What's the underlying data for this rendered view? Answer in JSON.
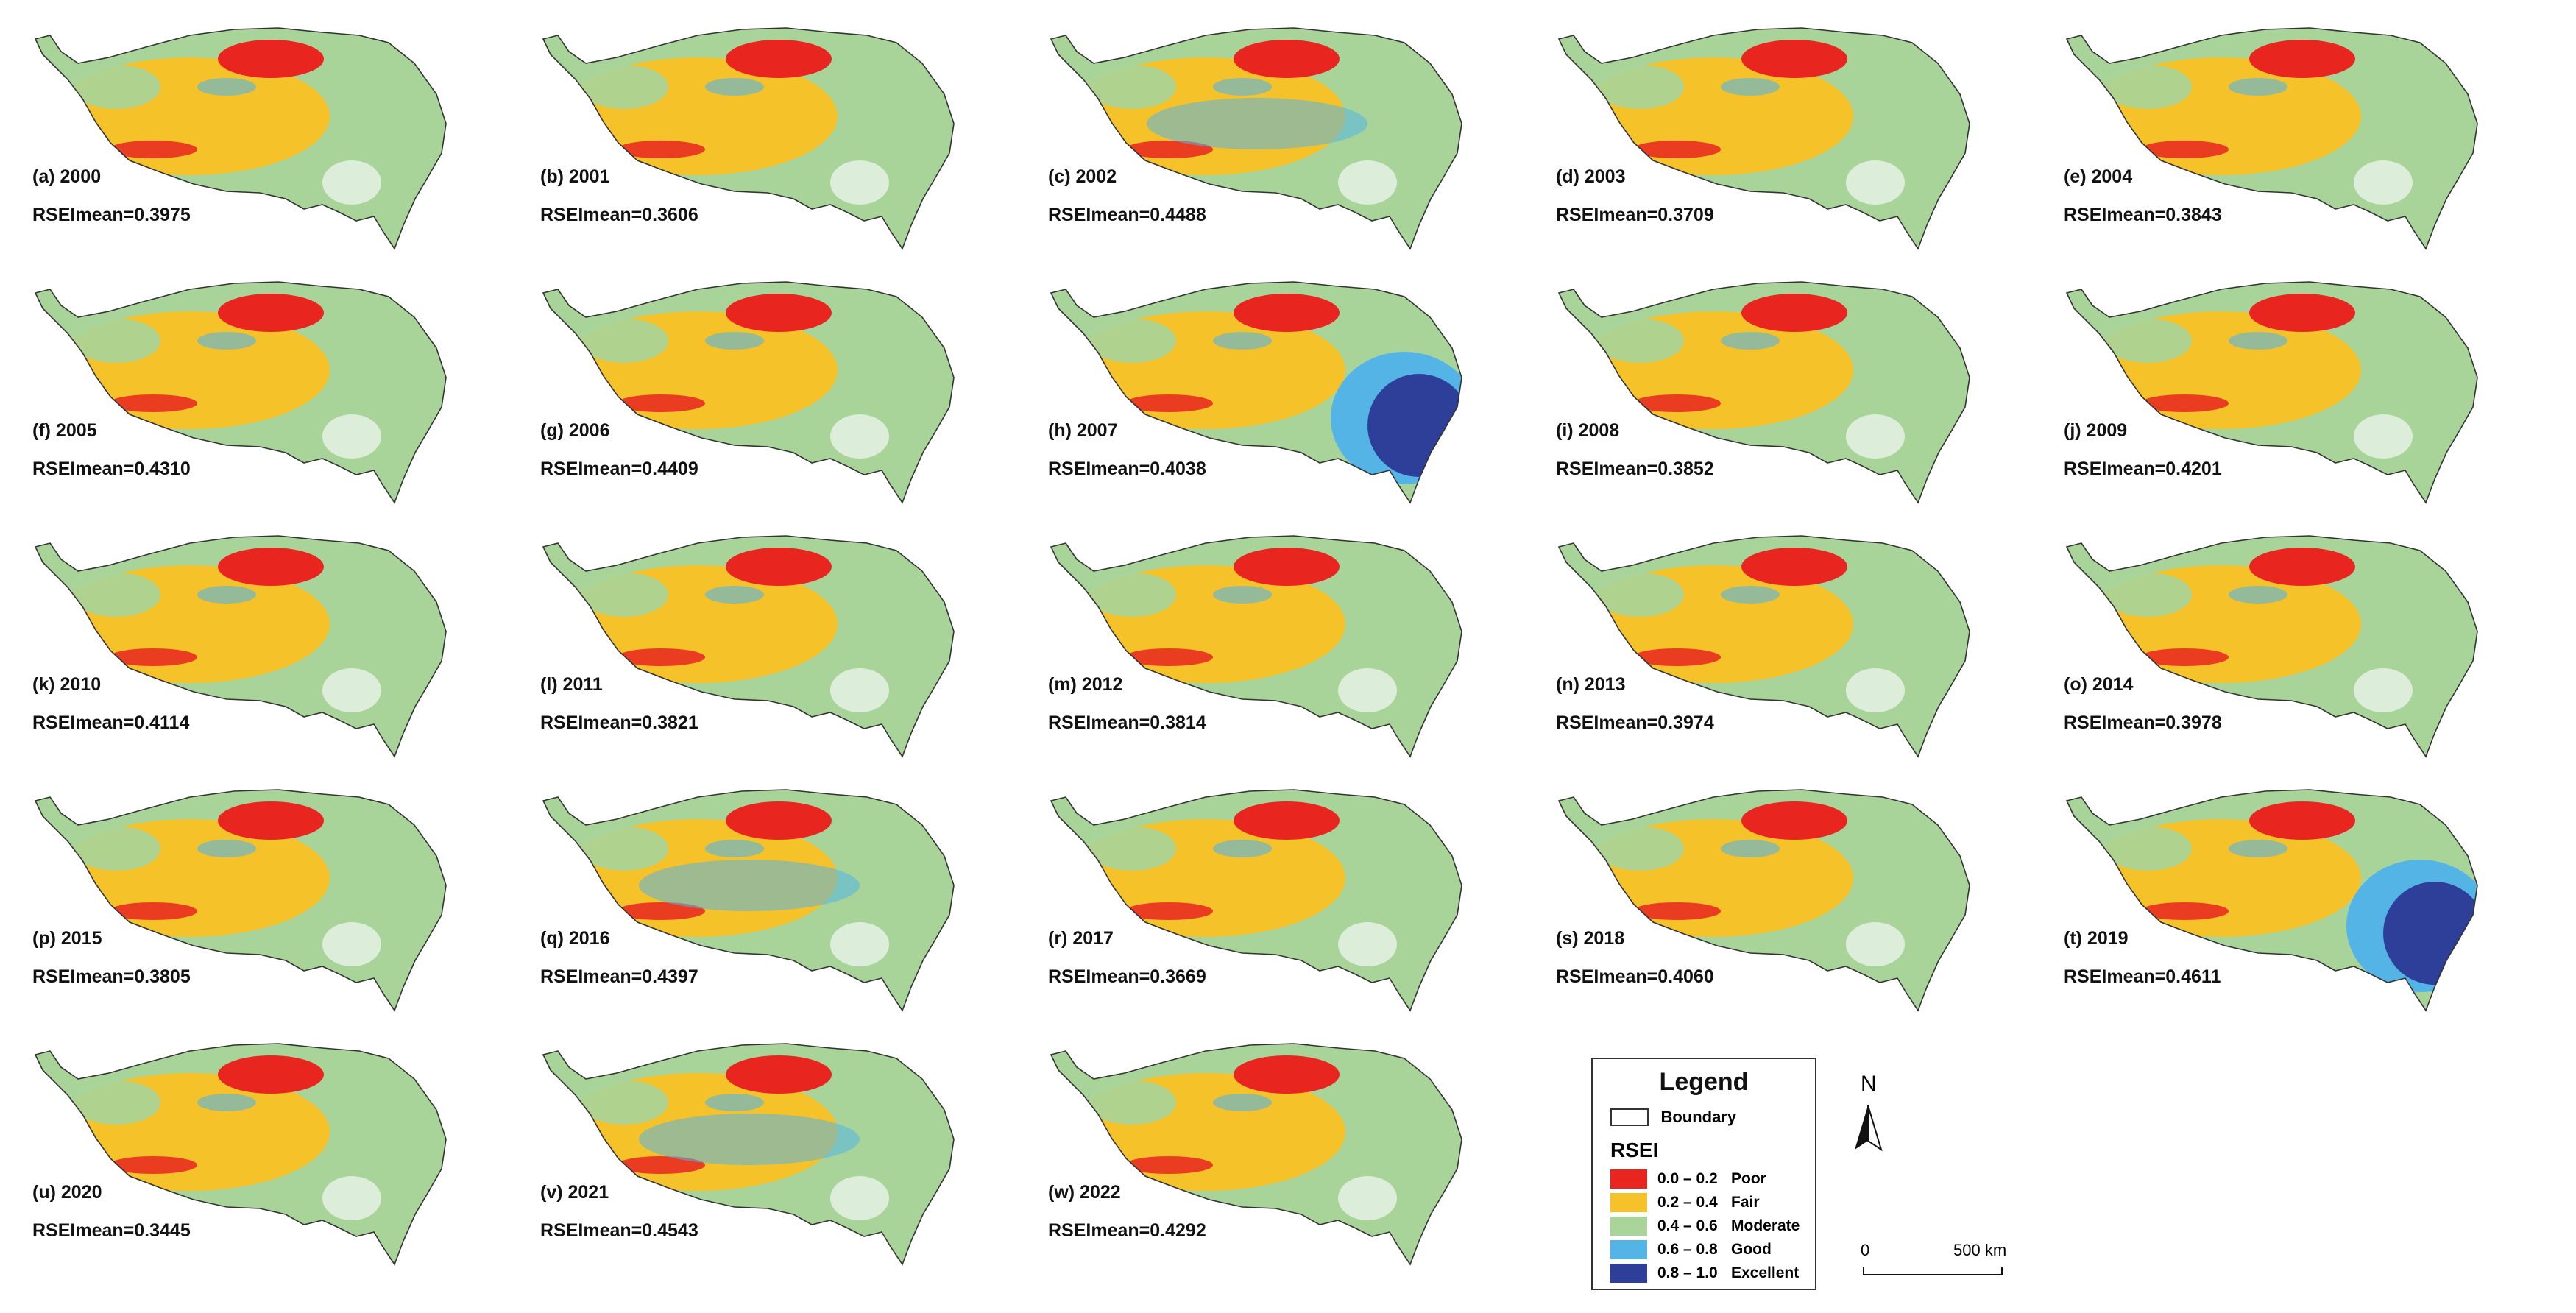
{
  "panels": [
    {
      "label": "(a) 2000",
      "mean": "RSEImean=0.3975"
    },
    {
      "label": "(b) 2001",
      "mean": "RSEImean=0.3606"
    },
    {
      "label": "(c) 2002",
      "mean": "RSEImean=0.4488"
    },
    {
      "label": "(d) 2003",
      "mean": "RSEImean=0.3709"
    },
    {
      "label": "(e) 2004",
      "mean": "RSEImean=0.3843"
    },
    {
      "label": "(f) 2005",
      "mean": "RSEImean=0.4310"
    },
    {
      "label": "(g) 2006",
      "mean": "RSEImean=0.4409"
    },
    {
      "label": "(h) 2007",
      "mean": "RSEImean=0.4038"
    },
    {
      "label": "(i) 2008",
      "mean": "RSEImean=0.3852"
    },
    {
      "label": "(j) 2009",
      "mean": "RSEImean=0.4201"
    },
    {
      "label": "(k) 2010",
      "mean": "RSEImean=0.4114"
    },
    {
      "label": "(l) 2011",
      "mean": "RSEImean=0.3821"
    },
    {
      "label": "(m) 2012",
      "mean": "RSEImean=0.3814"
    },
    {
      "label": "(n) 2013",
      "mean": "RSEImean=0.3974"
    },
    {
      "label": "(o) 2014",
      "mean": "RSEImean=0.3978"
    },
    {
      "label": "(p) 2015",
      "mean": "RSEImean=0.3805"
    },
    {
      "label": "(q) 2016",
      "mean": "RSEImean=0.4397"
    },
    {
      "label": "(r) 2017",
      "mean": "RSEImean=0.3669"
    },
    {
      "label": "(s) 2018",
      "mean": "RSEImean=0.4060"
    },
    {
      "label": "(t) 2019",
      "mean": "RSEImean=0.4611"
    },
    {
      "label": "(u) 2020",
      "mean": "RSEImean=0.3445"
    },
    {
      "label": "(v) 2021",
      "mean": "RSEImean=0.4543"
    },
    {
      "label": "(w) 2022",
      "mean": "RSEImean=0.4292"
    }
  ],
  "legend": {
    "title": "Legend",
    "boundary": "Boundary",
    "index_label": "RSEI",
    "classes": [
      {
        "range": "0.0 – 0.2",
        "name": "Poor",
        "color": "#e8251f"
      },
      {
        "range": "0.2 – 0.4",
        "name": "Fair",
        "color": "#f5c22a"
      },
      {
        "range": "0.4 – 0.6",
        "name": "Moderate",
        "color": "#a8d49a"
      },
      {
        "range": "0.6 – 0.8",
        "name": "Good",
        "color": "#54b4e6"
      },
      {
        "range": "0.8 – 1.0",
        "name": "Excellent",
        "color": "#2e3f9a"
      }
    ]
  },
  "north_arrow": {
    "label": "N"
  },
  "scale_bar": {
    "start": "0",
    "end": "500 km"
  }
}
